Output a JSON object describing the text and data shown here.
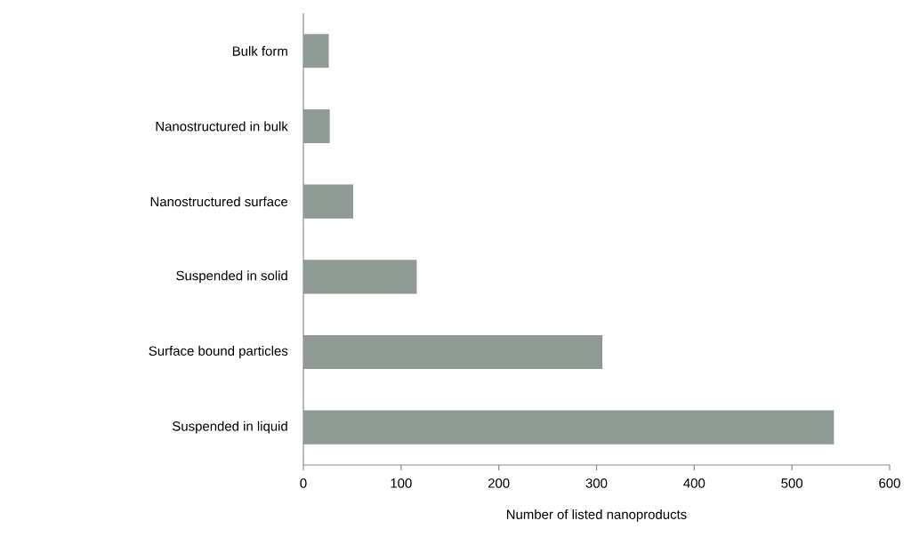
{
  "chart_data": {
    "type": "bar",
    "orientation": "horizontal",
    "xlabel": "Number of listed nanoproducts",
    "categories": [
      "Bulk form",
      "Nanostructured in bulk",
      "Nanostructured surface",
      "Suspended in solid",
      "Surface bound particles",
      "Suspended in liquid"
    ],
    "values": [
      26,
      27,
      51,
      116,
      306,
      543
    ],
    "color": "#8f9a95",
    "xlim": [
      0,
      600
    ],
    "xticks": [
      0,
      100,
      200,
      300,
      400,
      500,
      600
    ]
  }
}
